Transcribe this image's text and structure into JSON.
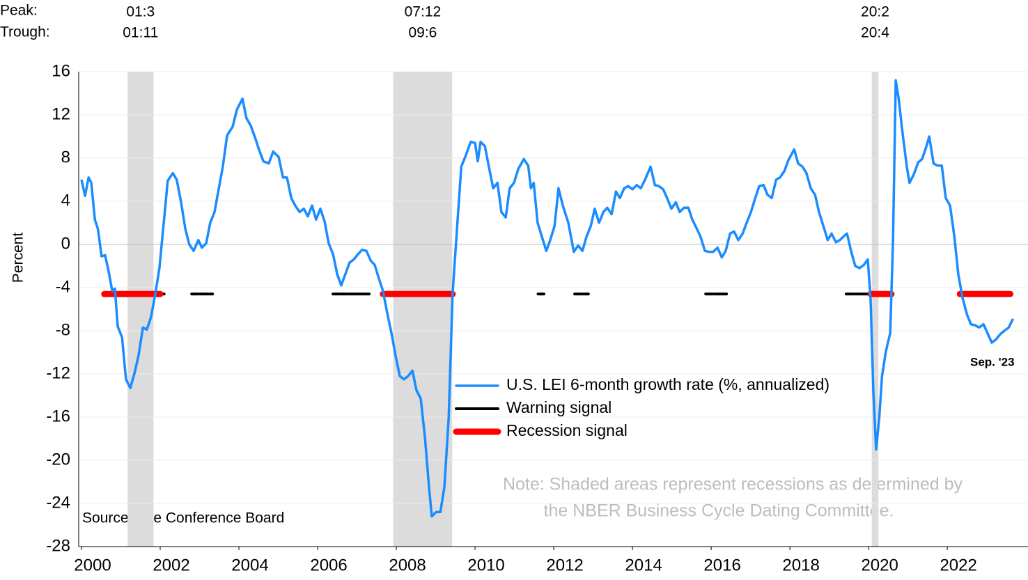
{
  "chart_data": {
    "type": "line",
    "y_label": "Percent",
    "peak_label": "Peak:",
    "trough_label": "Trough:",
    "recessions": [
      {
        "start": 2001.17,
        "end": 2001.83,
        "peak": "01:3",
        "trough": "01:11"
      },
      {
        "start": 2007.92,
        "end": 2009.42,
        "peak": "07:12",
        "trough": "09:6"
      },
      {
        "start": 2020.08,
        "end": 2020.25,
        "peak": "20:2",
        "trough": "20:4"
      }
    ],
    "shade_color": "#dcdcdc",
    "series": [
      {
        "name": "U.S. LEI 6-month growth rate (%, annualized)",
        "color": "#1a8cff",
        "x": [
          2000,
          2000.09,
          2000.18,
          2000.25,
          2000.34,
          2000.42,
          2000.51,
          2000.6,
          2000.69,
          2000.78,
          2000.85,
          2000.92,
          2001.03,
          2001.13,
          2001.24,
          2001.35,
          2001.45,
          2001.56,
          2001.66,
          2001.77,
          2001.88,
          2001.98,
          2002.09,
          2002.19,
          2002.32,
          2002.42,
          2002.53,
          2002.64,
          2002.74,
          2002.85,
          2002.97,
          2003.06,
          2003.17,
          2003.27,
          2003.38,
          2003.49,
          2003.59,
          2003.7,
          2003.84,
          2003.95,
          2004.09,
          2004.19,
          2004.3,
          2004.41,
          2004.51,
          2004.62,
          2004.76,
          2004.87,
          2005.01,
          2005.12,
          2005.22,
          2005.33,
          2005.43,
          2005.54,
          2005.65,
          2005.75,
          2005.86,
          2005.96,
          2006.07,
          2006.18,
          2006.28,
          2006.39,
          2006.5,
          2006.6,
          2006.71,
          2006.81,
          2006.92,
          2007.03,
          2007.13,
          2007.24,
          2007.35,
          2007.45,
          2007.56,
          2007.66,
          2007.77,
          2007.88,
          2007.98,
          2008.09,
          2008.19,
          2008.3,
          2008.41,
          2008.51,
          2008.62,
          2008.73,
          2008.83,
          2008.9,
          2009.01,
          2009.12,
          2009.22,
          2009.33,
          2009.43,
          2009.54,
          2009.65,
          2009.75,
          2009.89,
          2010,
          2010.07,
          2010.14,
          2010.25,
          2010.35,
          2010.46,
          2010.57,
          2010.67,
          2010.78,
          2010.88,
          2010.99,
          2011.1,
          2011.24,
          2011.35,
          2011.42,
          2011.49,
          2011.59,
          2011.7,
          2011.81,
          2011.91,
          2012.02,
          2012.12,
          2012.23,
          2012.37,
          2012.51,
          2012.62,
          2012.73,
          2012.83,
          2012.94,
          2013.04,
          2013.15,
          2013.26,
          2013.36,
          2013.47,
          2013.58,
          2013.68,
          2013.79,
          2013.89,
          2014,
          2014.11,
          2014.21,
          2014.32,
          2014.46,
          2014.57,
          2014.67,
          2014.78,
          2014.88,
          2014.99,
          2015.1,
          2015.2,
          2015.31,
          2015.42,
          2015.52,
          2015.63,
          2015.73,
          2015.84,
          2015.95,
          2016.05,
          2016.16,
          2016.27,
          2016.37,
          2016.48,
          2016.58,
          2016.69,
          2016.8,
          2016.9,
          2017.01,
          2017.12,
          2017.22,
          2017.33,
          2017.43,
          2017.54,
          2017.65,
          2017.75,
          2017.86,
          2017.96,
          2018.11,
          2018.21,
          2018.32,
          2018.42,
          2018.53,
          2018.64,
          2018.74,
          2018.85,
          2018.96,
          2019.06,
          2019.17,
          2019.27,
          2019.38,
          2019.45,
          2019.56,
          2019.66,
          2019.77,
          2019.88,
          2019.98,
          2020.05,
          2020.12,
          2020.19,
          2020.27,
          2020.34,
          2020.44,
          2020.55,
          2020.62,
          2020.69,
          2020.76,
          2020.87,
          2020.97,
          2021.04,
          2021.15,
          2021.26,
          2021.36,
          2021.47,
          2021.54,
          2021.65,
          2021.75,
          2021.86,
          2021.96,
          2022.07,
          2022.18,
          2022.28,
          2022.39,
          2022.5,
          2022.6,
          2022.71,
          2022.81,
          2022.92,
          2023.03,
          2023.13,
          2023.24,
          2023.35,
          2023.45,
          2023.56,
          2023.67
        ],
        "values": [
          6,
          4.5,
          6.2,
          5.7,
          2.3,
          1.4,
          -1.1,
          -1,
          -2.5,
          -4.3,
          -4.1,
          -7.6,
          -8.6,
          -12.5,
          -13.3,
          -11.9,
          -10.3,
          -7.7,
          -7.9,
          -6.7,
          -4.5,
          -2.2,
          2,
          5.9,
          6.6,
          6,
          3.9,
          1.4,
          0,
          -0.6,
          0.4,
          -0.3,
          0.1,
          2,
          3,
          5.2,
          7.2,
          10.1,
          10.9,
          12.5,
          13.5,
          11.7,
          11,
          9.9,
          8.8,
          7.7,
          7.5,
          8.6,
          8.1,
          6.2,
          6.2,
          4.3,
          3.6,
          3,
          3.3,
          2.6,
          3.6,
          2.3,
          3.3,
          2.1,
          0.1,
          -0.9,
          -2.8,
          -3.8,
          -2.7,
          -1.7,
          -1.4,
          -0.9,
          -0.5,
          -0.6,
          -1.5,
          -1.9,
          -3.2,
          -4.3,
          -6.4,
          -8.3,
          -10.3,
          -12.2,
          -12.5,
          -12.2,
          -11.7,
          -13.5,
          -14.3,
          -18,
          -22.5,
          -25.2,
          -24.8,
          -24.8,
          -22.5,
          -16.1,
          -4.5,
          1.4,
          7.2,
          8.1,
          9.5,
          9.4,
          7.7,
          9.5,
          9.1,
          7.2,
          5.2,
          5.7,
          3,
          2.5,
          5.2,
          5.7,
          7,
          7.9,
          7.3,
          5.2,
          5.7,
          2,
          0.7,
          -0.6,
          0.4,
          1.7,
          5.2,
          3.6,
          2,
          -0.7,
          -0.1,
          -0.6,
          0.7,
          1.7,
          3.3,
          2,
          3,
          3.4,
          2.8,
          4.9,
          4.3,
          5.2,
          5.4,
          5.1,
          5.5,
          5.2,
          6,
          7.2,
          5.5,
          5.4,
          5.1,
          4.3,
          3.3,
          3.9,
          3,
          3.4,
          3.4,
          2.3,
          1.5,
          0.7,
          -0.6,
          -0.7,
          -0.7,
          -0.3,
          -1.2,
          -0.6,
          1,
          1.2,
          0.4,
          1,
          2,
          3,
          4.3,
          5.4,
          5.5,
          4.6,
          4.3,
          6,
          6.2,
          6.8,
          7.8,
          8.8,
          7.5,
          7.2,
          6.6,
          5.2,
          4.6,
          3,
          1.7,
          0.4,
          1,
          0.2,
          0.4,
          0.8,
          1,
          -0.7,
          -2,
          -2.2,
          -1.9,
          -1.4,
          -5.1,
          -13.5,
          -19,
          -16.1,
          -12.2,
          -9.9,
          -8.2,
          0.4,
          15.2,
          13.6,
          10.1,
          7.2,
          5.7,
          6.5,
          7.6,
          7.9,
          9.1,
          10,
          7.5,
          7.3,
          7.3,
          4.3,
          3.6,
          0.7,
          -2.8,
          -5,
          -6.5,
          -7.4,
          -7.5,
          -7.7,
          -7.4,
          -8.3,
          -9.1,
          -8.8,
          -8.3,
          -8,
          -7.7,
          -6.9
        ]
      }
    ],
    "signals": [
      {
        "name": "Warning signal",
        "color": "#000000",
        "level": -4.6,
        "ranges": [
          [
            2000.55,
            2002.1
          ],
          [
            2002.8,
            2003.33
          ],
          [
            2006.39,
            2007.31
          ],
          [
            2011.6,
            2011.75
          ],
          [
            2012.53,
            2012.88
          ],
          [
            2015.86,
            2016.39
          ],
          [
            2019.43,
            2020.05
          ]
        ]
      },
      {
        "name": "Recession signal",
        "color": "#ff0000",
        "level": -4.6,
        "ranges": [
          [
            2000.58,
            2002.0
          ],
          [
            2007.66,
            2009.43
          ],
          [
            2020.05,
            2020.58
          ],
          [
            2022.32,
            2023.6
          ]
        ]
      }
    ],
    "xlim": [
      2000,
      2024.05
    ],
    "xticks": [
      2000,
      2002,
      2004,
      2006,
      2008,
      2010,
      2012,
      2014,
      2016,
      2018,
      2020,
      2022
    ],
    "ylim": [
      -28,
      16
    ],
    "yticks": [
      -28,
      -24,
      -20,
      -16,
      -12,
      -8,
      -4,
      0,
      4,
      8,
      12,
      16
    ],
    "grid": true,
    "end_label": "Sep. '23",
    "source": "Source: The Conference Board",
    "note": [
      "Note: Shaded areas represent recessions as determined by",
      "the NBER Business Cycle Dating Committee."
    ]
  }
}
